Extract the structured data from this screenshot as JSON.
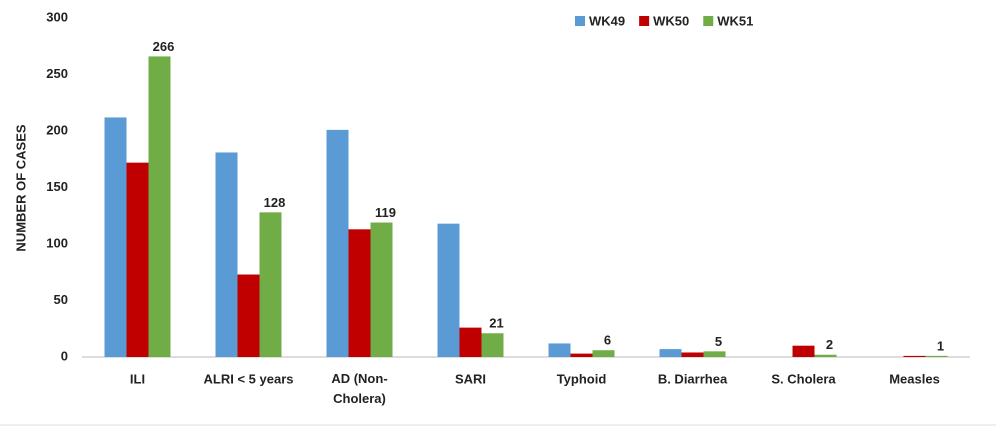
{
  "chart_data": {
    "type": "bar",
    "y_label": "NUMBER OF CASES",
    "categories": [
      "ILI",
      "ALRI < 5 years",
      "AD (Non-Cholera)",
      "SARI",
      "Typhoid",
      "B. Diarrhea",
      "S. Cholera",
      "Measles"
    ],
    "series": [
      {
        "name": "WK49",
        "color": "#5b9bd5",
        "values": [
          212,
          181,
          201,
          118,
          12,
          7,
          0,
          0
        ]
      },
      {
        "name": "WK50",
        "color": "#c00000",
        "values": [
          172,
          73,
          113,
          26,
          3,
          4,
          10,
          1
        ]
      },
      {
        "name": "WK51",
        "color": "#70ad47",
        "values": [
          266,
          128,
          119,
          21,
          6,
          5,
          2,
          1
        ],
        "show_labels": true
      }
    ],
    "ylim": [
      0,
      300
    ],
    "yticks": [
      0,
      50,
      100,
      150,
      200,
      250,
      300
    ],
    "grid": false,
    "legend": "top"
  }
}
